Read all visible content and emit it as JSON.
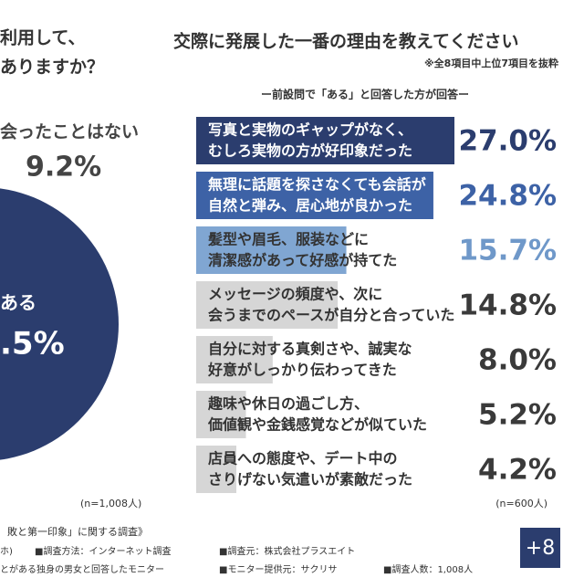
{
  "left_panel": {
    "question_lines": [
      "利用して、",
      "ありますか？"
    ],
    "slice_label": "会ったことはない",
    "slice_value": "9.2%",
    "main_label": "ある",
    "main_value": ".5%",
    "sample": "(n=1,008人)"
  },
  "chart_data": {
    "type": "bar",
    "orientation": "horizontal",
    "title": "交際に発展した一番の理由を教えてください",
    "note": "※全8項目中上位7項目を抜粋",
    "subtitle": "ー前設問で「ある」と回答した方が回答ー",
    "categories": [
      [
        "写真と実物のギャップがなく、",
        "むしろ実物の方が好印象だった"
      ],
      [
        "無理に話題を探さなくても会話が",
        "自然と弾み、居心地が良かった"
      ],
      [
        "髪型や眉毛、服装などに",
        "清潔感があって好感が持てた"
      ],
      [
        "メッセージの頻度や、次に",
        "会うまでのペースが自分と合っていた"
      ],
      [
        "自分に対する真剣さや、誠実な",
        "好意がしっかり伝わってきた"
      ],
      [
        "趣味や休日の過ごし方、",
        "価値観や金銭感覚などが似ていた"
      ],
      [
        "店員への態度や、デート中の",
        "さりげない気遣いが素敵だった"
      ]
    ],
    "values": [
      27.0,
      24.8,
      15.7,
      14.8,
      8.0,
      5.2,
      4.2
    ],
    "value_labels": [
      "27.0%",
      "24.8%",
      "15.7%",
      "14.8%",
      "8.0%",
      "5.2%",
      "4.2%"
    ],
    "colors": [
      "#2b3d6e",
      "#3d62a6",
      "#80a6d2",
      "#d6d6d6",
      "#d6d6d6",
      "#d6d6d6",
      "#d6d6d6"
    ],
    "label_colors": [
      "#2b3d6e",
      "#3d62a6",
      "#6f98c9",
      "#3a3a3a",
      "#3a3a3a",
      "#3a3a3a",
      "#3a3a3a"
    ],
    "xlim": [
      0,
      27
    ],
    "sample": "(n=600人)"
  },
  "footer": {
    "lines": [
      "敗と第一印象」に関する調査》",
      "■調査方法：インターネット調査",
      "■調査元：株式会社プラスエイト",
      "とがある独身の男女と回答したモニター",
      "■モニター提供元：サクリサ",
      "■調査人数：1,008人",
      "ホ)"
    ],
    "logo": "+8"
  }
}
